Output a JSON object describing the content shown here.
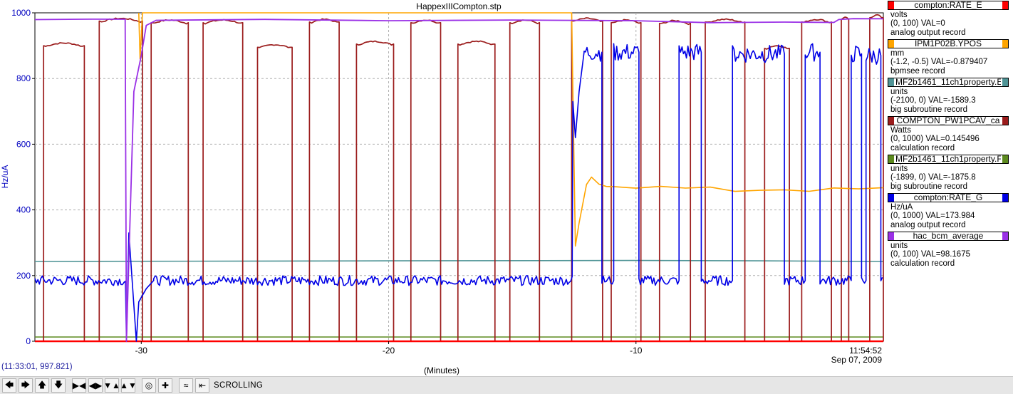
{
  "chart_data": {
    "type": "line",
    "title": "HappexIIICompton.stp",
    "xlabel": "(Minutes)",
    "ylabel": "Hz/uA",
    "xlim": [
      -34.3,
      0
    ],
    "ylim": [
      0,
      1000
    ],
    "x_ticks": [
      -30,
      -20,
      -10
    ],
    "y_ticks": [
      0,
      200,
      400,
      600,
      800,
      1000
    ],
    "grid": true,
    "legend_position": "right",
    "timestamp": [
      "11:54:52",
      "Sep 07, 2009"
    ],
    "cursor_readout": "(11:33:01, 997.821)",
    "series": [
      {
        "name": "compton:RATE_E",
        "color": "#ff0000",
        "units": "volts",
        "range": "(0, 100)  VAL=0",
        "record": "analog output record",
        "x": [
          -34.3,
          0
        ],
        "y": [
          0,
          0
        ]
      },
      {
        "name": "IPM1P02B.YPOS",
        "color": "#ffa500",
        "units": "mm",
        "range": "(-1.2, -0.5) VAL=-0.879407",
        "record": "bpmsee record",
        "x": [
          -30.1,
          -30.05,
          -29.95,
          -12.6,
          -12.55,
          -12.45,
          -12.3,
          -12.0,
          -11.8,
          -11.5,
          -11.2,
          -10.8,
          -10.0,
          -9.0,
          -8.0,
          -7.0,
          -6.0,
          -5.0,
          -4.0,
          -3.0,
          -2.0,
          -1.0,
          0
        ],
        "y": [
          1000,
          860,
          1000,
          1000,
          760,
          290,
          360,
          470,
          495,
          480,
          478,
          475,
          472,
          468,
          465,
          462,
          460,
          462,
          464,
          462,
          460,
          462,
          463
        ]
      },
      {
        "name": "MF2b1461_11ch1property.E",
        "color": "#4f9496",
        "units": "units",
        "range": "(-2100, 0) VAL=-1589.3",
        "record": "big subroutine record",
        "x": [
          -34.3,
          -20,
          -10,
          -5,
          0
        ],
        "y": [
          243,
          245,
          246,
          245,
          243
        ]
      },
      {
        "name": "COMPTON_PW1PCAV_ca",
        "color": "#9b1c1c",
        "units": "Watts",
        "range": "(0, 1000) VAL=0.145496",
        "record": "calculation record",
        "pulses": [
          [
            -33.95,
            -32.3,
            900
          ],
          [
            -31.7,
            -29.95,
            975
          ],
          [
            -29.6,
            -28.1,
            970
          ],
          [
            -27.5,
            -25.9,
            970
          ],
          [
            -25.3,
            -23.9,
            895
          ],
          [
            -23.2,
            -22.0,
            972
          ],
          [
            -21.3,
            -19.8,
            905
          ],
          [
            -19.1,
            -17.9,
            970
          ],
          [
            -17.2,
            -15.7,
            905
          ],
          [
            -15.1,
            -13.9,
            970
          ],
          [
            -12.6,
            -11.35,
            975
          ],
          [
            -11.0,
            -9.8,
            970
          ],
          [
            -9.05,
            -7.8,
            968
          ],
          [
            -7.2,
            -5.6,
            972
          ],
          [
            -4.8,
            -3.8,
            892
          ],
          [
            -3.3,
            -2.1,
            972
          ],
          [
            -1.7,
            -1.4,
            980
          ],
          [
            -0.55,
            0,
            985
          ]
        ],
        "baseline": 0
      },
      {
        "name": "MF2b1461_11ch1property.F",
        "color": "#5c8a1e",
        "units": "units",
        "range": "(-1899, 0) VAL=-1875.8",
        "record": "big subroutine record",
        "x": [
          -34.3,
          0
        ],
        "y": [
          13,
          13
        ]
      },
      {
        "name": "compton:RATE_G",
        "color": "#0000e6",
        "units": "Hz/uA",
        "range": "(0, 1000) VAL=173.984",
        "record": "analog output record",
        "base_level": 185,
        "high_segments": [
          [
            -12.1,
            -11.4,
            880
          ],
          [
            -10.9,
            -9.9,
            880
          ],
          [
            -8.3,
            -7.4,
            880
          ],
          [
            -6.1,
            -4.0,
            875
          ],
          [
            -3.2,
            -2.6,
            880
          ],
          [
            -1.3,
            -0.9,
            875
          ],
          [
            -0.7,
            -0.1,
            870
          ]
        ],
        "dropout": {
          "x": [
            -30.6,
            -30.5,
            -30.2,
            -30.1,
            -29.8,
            -29.5
          ],
          "y": [
            0,
            330,
            0,
            120,
            160,
            185
          ]
        },
        "jump": {
          "x": [
            -12.55,
            -12.45,
            -12.3,
            -12.1
          ],
          "y": [
            730,
            620,
            760,
            880
          ]
        }
      },
      {
        "name": "hac_bcm_average",
        "color": "#9a30e6",
        "units": "units",
        "range": "(0, 100) VAL=98.1675",
        "record": "calculation record",
        "x": [
          -34.3,
          -32.0,
          -30.65,
          -30.6,
          -30.3,
          -30.0,
          -29.8,
          -29.4,
          -25.0,
          -20.0,
          -15.0,
          -10.0,
          -7.0,
          -4.0,
          -2.0,
          -1.8,
          -1.2,
          0
        ],
        "y": [
          979,
          979,
          979,
          0,
          760,
          870,
          960,
          976,
          979,
          977,
          978,
          974,
          972,
          972,
          969,
          979,
          984,
          984
        ]
      }
    ]
  },
  "legend": [
    {
      "name": "compton:RATE_E",
      "color": "#ff0000",
      "units": "volts",
      "range": "(0, 100)  VAL=0",
      "record": "analog output record"
    },
    {
      "name": "IPM1P02B.YPOS",
      "color": "#ffa500",
      "units": "mm",
      "range": "(-1.2, -0.5) VAL=-0.879407",
      "record": "bpmsee record"
    },
    {
      "name": "MF2b1461_11ch1property.E",
      "color": "#4f9496",
      "units": "units",
      "range": "(-2100, 0) VAL=-1589.3",
      "record": "big subroutine record"
    },
    {
      "name": "COMPTON_PW1PCAV_ca",
      "color": "#9b1c1c",
      "units": "Watts",
      "range": "(0, 1000) VAL=0.145496",
      "record": "calculation record"
    },
    {
      "name": "MF2b1461_11ch1property.F",
      "color": "#5c8a1e",
      "units": "units",
      "range": "(-1899, 0) VAL=-1875.8",
      "record": "big subroutine record"
    },
    {
      "name": "compton:RATE_G",
      "color": "#0000e6",
      "units": "Hz/uA",
      "range": "(0, 1000) VAL=173.984",
      "record": "analog output record"
    },
    {
      "name": "hac_bcm_average",
      "color": "#9a30e6",
      "units": "units",
      "range": "(0, 100) VAL=98.1675",
      "record": "calculation record"
    }
  ],
  "toolbar": {
    "buttons": [
      {
        "name": "scroll-left-button",
        "glyph": "🡄"
      },
      {
        "name": "scroll-right-button",
        "glyph": "🡆"
      },
      {
        "name": "scroll-up-button",
        "glyph": "🡅"
      },
      {
        "name": "scroll-down-button",
        "glyph": "🡇"
      },
      {
        "name": "zoom-x-in-button",
        "glyph": "▶◀"
      },
      {
        "name": "zoom-x-out-button",
        "glyph": "◀▶"
      },
      {
        "name": "zoom-y-in-button",
        "glyph": "▼▲"
      },
      {
        "name": "zoom-y-out-button",
        "glyph": "▲▼"
      },
      {
        "name": "zoom-box-button",
        "glyph": "◎"
      },
      {
        "name": "crosshair-button",
        "glyph": "✚"
      },
      {
        "name": "autoscale-button",
        "glyph": "≈"
      },
      {
        "name": "scroll-mode-button",
        "glyph": "⇤"
      }
    ],
    "mode_label": "SCROLLING"
  }
}
